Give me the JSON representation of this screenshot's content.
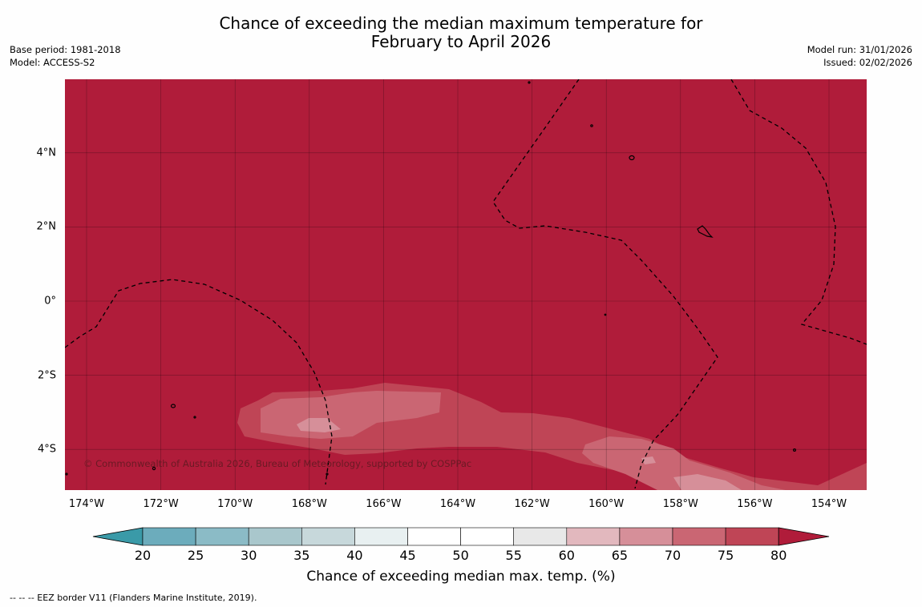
{
  "title_line1": "Chance of exceeding the median maximum temperature for",
  "title_line2": "February to April 2026",
  "meta_left": [
    "Base period: 1981-2018",
    "Model: ACCESS-S2"
  ],
  "meta_right": [
    "Model run: 31/01/2026",
    "Issued: 02/02/2026"
  ],
  "lat_labels": [
    {
      "text": "4°N",
      "value": 4
    },
    {
      "text": "2°N",
      "value": 2
    },
    {
      "text": "0°",
      "value": 0
    },
    {
      "text": "2°S",
      "value": -2
    },
    {
      "text": "4°S",
      "value": -4
    }
  ],
  "lon_labels": [
    {
      "text": "174°W",
      "value": -174
    },
    {
      "text": "172°W",
      "value": -172
    },
    {
      "text": "170°W",
      "value": -170
    },
    {
      "text": "168°W",
      "value": -168
    },
    {
      "text": "166°W",
      "value": -166
    },
    {
      "text": "164°W",
      "value": -164
    },
    {
      "text": "162°W",
      "value": -162
    },
    {
      "text": "160°W",
      "value": -160
    },
    {
      "text": "158°W",
      "value": -158
    },
    {
      "text": "156°W",
      "value": -156
    },
    {
      "text": "154°W",
      "value": -154
    }
  ],
  "copyright": "© Commonwealth of Australia 2026, Bureau of Meteorology, supported by COSPPac",
  "colorbar": {
    "title": "Chance of exceeding median max. temp. (%)",
    "ticks": [
      "20",
      "25",
      "30",
      "35",
      "40",
      "45",
      "50",
      "55",
      "60",
      "65",
      "70",
      "75",
      "80"
    ],
    "under_color": "#3a9aa8",
    "over_color": "#b01c3a",
    "colors": [
      "#6cacbc",
      "#8bbbc6",
      "#a9c7cc",
      "#c7d8db",
      "#e8f0f1",
      "#ffffff",
      "#ffffff",
      "#e8e8e8",
      "#e2b8be",
      "#d68f99",
      "#ca6673",
      "#bf4556"
    ]
  },
  "footnote": "--  --  -- EEZ border V11 (Flanders Marine Institute, 2019)."
}
